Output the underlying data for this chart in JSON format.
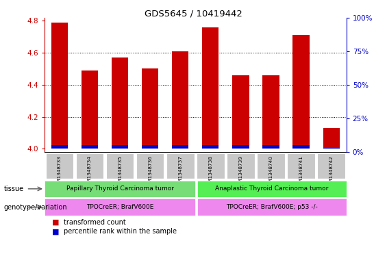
{
  "title": "GDS5645 / 10419442",
  "samples": [
    "GSM1348733",
    "GSM1348734",
    "GSM1348735",
    "GSM1348736",
    "GSM1348737",
    "GSM1348738",
    "GSM1348739",
    "GSM1348740",
    "GSM1348741",
    "GSM1348742"
  ],
  "transformed_count": [
    4.79,
    4.49,
    4.57,
    4.5,
    4.61,
    4.76,
    4.46,
    4.46,
    4.71,
    4.13
  ],
  "percentile_rank": [
    5,
    5,
    5,
    5,
    5,
    5,
    5,
    5,
    5,
    3
  ],
  "base": 4.0,
  "ylim_left": [
    3.98,
    4.82
  ],
  "ylim_right": [
    0,
    100
  ],
  "yticks_left": [
    4.0,
    4.2,
    4.4,
    4.6,
    4.8
  ],
  "yticks_right": [
    0,
    25,
    50,
    75,
    100
  ],
  "bar_color_red": "#cc0000",
  "bar_color_blue": "#0000cc",
  "bar_width": 0.55,
  "tissue_groups": [
    {
      "label": "Papillary Thyroid Carcinoma tumor",
      "start": 0,
      "end": 4,
      "color": "#77dd77"
    },
    {
      "label": "Anaplastic Thyroid Carcinoma tumor",
      "start": 5,
      "end": 9,
      "color": "#55ee55"
    }
  ],
  "genotype_groups": [
    {
      "label": "TPOCreER; BrafV600E",
      "start": 0,
      "end": 4,
      "color": "#ee88ee"
    },
    {
      "label": "TPOCreER; BrafV600E; p53 -/-",
      "start": 5,
      "end": 9,
      "color": "#ee88ee"
    }
  ],
  "tissue_label": "tissue",
  "genotype_label": "genotype/variation",
  "legend_red": "transformed count",
  "legend_blue": "percentile rank within the sample",
  "axis_color_left": "#cc0000",
  "axis_color_right": "#0000cc",
  "tick_label_bg": "#c8c8c8",
  "grid_lines": [
    4.2,
    4.4,
    4.6
  ]
}
